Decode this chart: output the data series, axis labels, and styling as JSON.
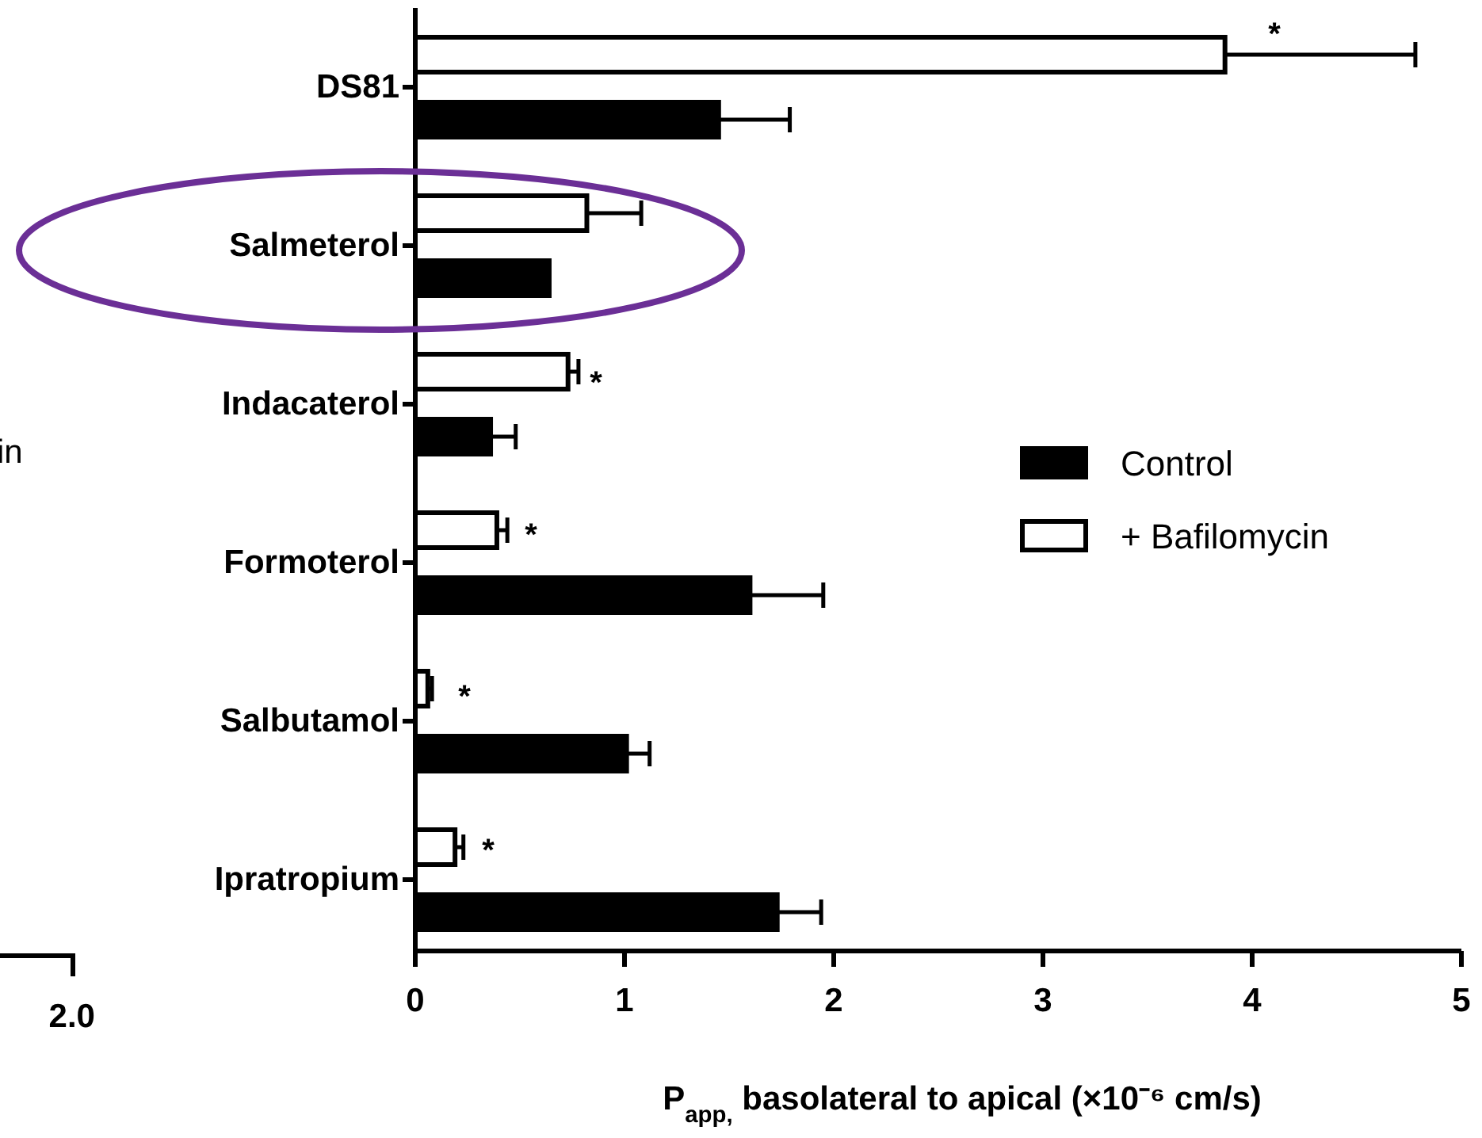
{
  "chart_data": {
    "type": "bar",
    "orientation": "horizontal",
    "categories": [
      "DS81",
      "Salmeterol",
      "Indacaterol",
      "Formoterol",
      "Salbutamol",
      "Ipratropium"
    ],
    "series": [
      {
        "name": "+ Bafilomycin",
        "color": "#ffffff",
        "values": [
          3.87,
          0.82,
          0.73,
          0.39,
          0.06,
          0.19
        ],
        "errors": [
          [
            3.87,
            4.78
          ],
          [
            0.82,
            1.08
          ],
          [
            0.73,
            0.78
          ],
          [
            0.39,
            0.44
          ],
          [
            0.06,
            0.08
          ],
          [
            0.19,
            0.23
          ]
        ]
      },
      {
        "name": "Control",
        "color": "#000000",
        "values": [
          1.45,
          0.64,
          0.36,
          1.6,
          1.01,
          1.73
        ],
        "errors": [
          [
            1.45,
            1.79
          ],
          null,
          [
            0.36,
            0.48
          ],
          [
            1.6,
            1.95
          ],
          [
            1.01,
            1.12
          ],
          [
            1.73,
            1.94
          ]
        ]
      }
    ],
    "xlim": [
      0,
      5
    ],
    "xticks": [
      0,
      1,
      2,
      3,
      4,
      5
    ],
    "xlabel": "P$_{app,}$ basolateral to apical (×10⁻⁶ cm/s)",
    "legend": "right",
    "annotations": [
      "*",
      "*",
      "*",
      "*",
      "*",
      "in",
      "2.0"
    ]
  }
}
